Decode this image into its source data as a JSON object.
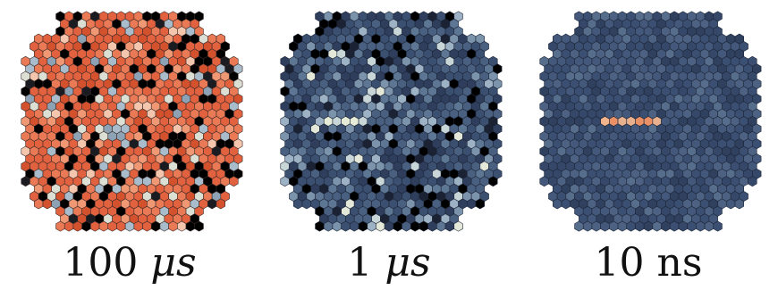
{
  "panels": [
    {
      "id": "p100us",
      "value": "100",
      "unit": "μs",
      "palette": [
        "#e2623f",
        "#e97a55",
        "#f09874",
        "#d4512e",
        "#000000",
        "#1b1b22",
        "#a9bccb",
        "#dcdfd4",
        "#8da2b5",
        "#f3c6ad"
      ],
      "weights": [
        30,
        18,
        8,
        10,
        14,
        4,
        6,
        4,
        3,
        3
      ]
    },
    {
      "id": "p1us",
      "value": "1",
      "unit": "μs",
      "palette": [
        "#2e3e5c",
        "#3b4f70",
        "#4a6080",
        "#5c7694",
        "#7c93ac",
        "#9eb2c6",
        "#000000",
        "#c9d6d8",
        "#e4e8d8",
        "#1a2233"
      ],
      "weights": [
        16,
        18,
        16,
        12,
        8,
        6,
        14,
        3,
        2,
        5
      ]
    },
    {
      "id": "p10ns",
      "value": "10",
      "unit": "ns",
      "palette": [
        "#3b4f72",
        "#43587a",
        "#4d6283",
        "#35486a",
        "#566d8c",
        "#30405f"
      ],
      "weights": [
        22,
        22,
        18,
        16,
        10,
        12
      ]
    }
  ]
}
